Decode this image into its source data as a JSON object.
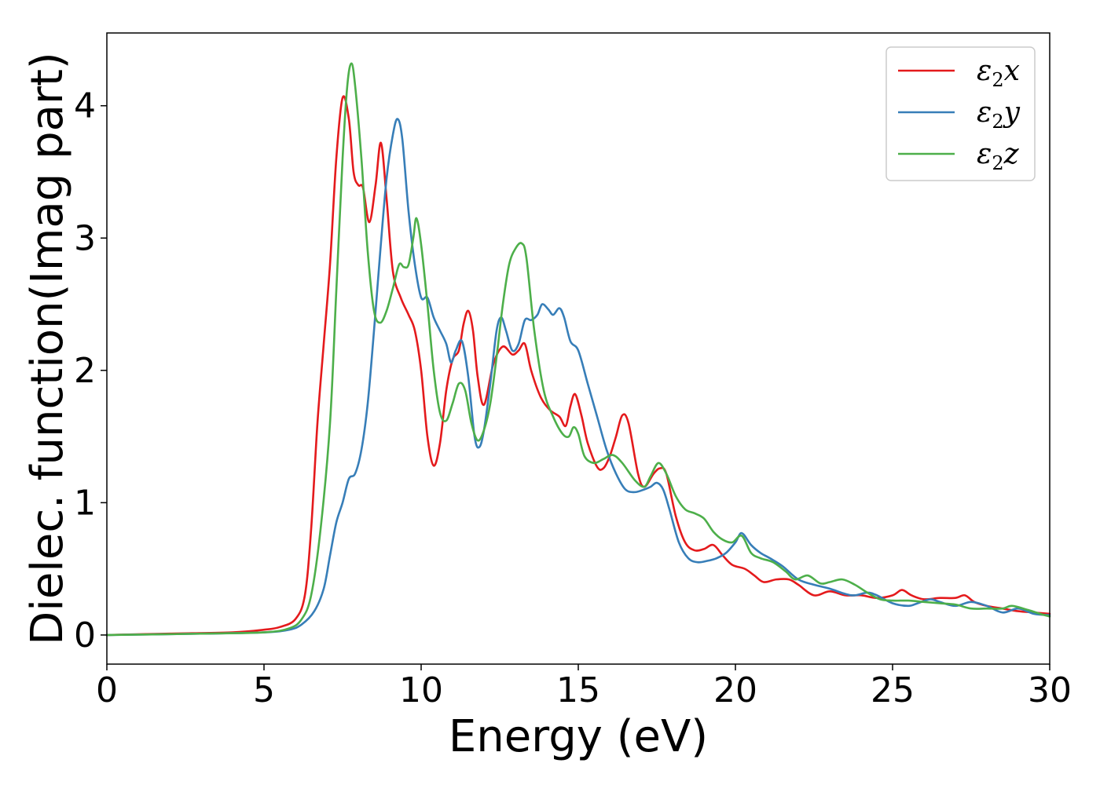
{
  "chart_data": {
    "type": "line",
    "title": "",
    "xlabel": "Energy (eV)",
    "ylabel": "Dielec. function(Imag part)",
    "xlim": [
      0,
      30
    ],
    "ylim": [
      -0.22,
      4.55
    ],
    "xticks": [
      0,
      5,
      10,
      15,
      20,
      25,
      30
    ],
    "xtick_labels": [
      "0",
      "5",
      "10",
      "15",
      "20",
      "25",
      "30"
    ],
    "yticks": [
      0,
      1,
      2,
      3,
      4
    ],
    "ytick_labels": [
      "0",
      "1",
      "2",
      "3",
      "4"
    ],
    "grid": false,
    "legend_position": "top-right",
    "series": [
      {
        "name": "ε2x",
        "base": "ε",
        "sub": "2",
        "suffix": "x",
        "color": "#e41a1c",
        "points": [
          [
            0,
            0
          ],
          [
            2,
            0.01
          ],
          [
            4,
            0.02
          ],
          [
            5,
            0.04
          ],
          [
            5.5,
            0.06
          ],
          [
            6,
            0.12
          ],
          [
            6.3,
            0.3
          ],
          [
            6.5,
            0.8
          ],
          [
            6.7,
            1.6
          ],
          [
            6.9,
            2.2
          ],
          [
            7.1,
            2.8
          ],
          [
            7.3,
            3.6
          ],
          [
            7.5,
            4.06
          ],
          [
            7.7,
            3.9
          ],
          [
            7.85,
            3.5
          ],
          [
            8.0,
            3.4
          ],
          [
            8.15,
            3.38
          ],
          [
            8.35,
            3.12
          ],
          [
            8.55,
            3.4
          ],
          [
            8.72,
            3.72
          ],
          [
            8.9,
            3.3
          ],
          [
            9.1,
            2.75
          ],
          [
            9.35,
            2.55
          ],
          [
            9.6,
            2.42
          ],
          [
            9.8,
            2.3
          ],
          [
            10.0,
            2.0
          ],
          [
            10.2,
            1.5
          ],
          [
            10.4,
            1.28
          ],
          [
            10.6,
            1.45
          ],
          [
            10.8,
            1.85
          ],
          [
            11.0,
            2.08
          ],
          [
            11.2,
            2.15
          ],
          [
            11.35,
            2.35
          ],
          [
            11.5,
            2.45
          ],
          [
            11.65,
            2.3
          ],
          [
            11.8,
            1.95
          ],
          [
            12.0,
            1.74
          ],
          [
            12.3,
            2.05
          ],
          [
            12.6,
            2.18
          ],
          [
            12.9,
            2.12
          ],
          [
            13.1,
            2.15
          ],
          [
            13.3,
            2.2
          ],
          [
            13.5,
            2.0
          ],
          [
            13.8,
            1.8
          ],
          [
            14.1,
            1.7
          ],
          [
            14.4,
            1.65
          ],
          [
            14.6,
            1.58
          ],
          [
            14.75,
            1.73
          ],
          [
            14.9,
            1.82
          ],
          [
            15.1,
            1.66
          ],
          [
            15.3,
            1.45
          ],
          [
            15.6,
            1.27
          ],
          [
            15.8,
            1.26
          ],
          [
            16.0,
            1.35
          ],
          [
            16.2,
            1.5
          ],
          [
            16.4,
            1.66
          ],
          [
            16.6,
            1.6
          ],
          [
            16.9,
            1.22
          ],
          [
            17.1,
            1.12
          ],
          [
            17.4,
            1.22
          ],
          [
            17.6,
            1.26
          ],
          [
            17.8,
            1.22
          ],
          [
            18.1,
            0.9
          ],
          [
            18.4,
            0.7
          ],
          [
            18.7,
            0.64
          ],
          [
            19.0,
            0.65
          ],
          [
            19.3,
            0.68
          ],
          [
            19.6,
            0.6
          ],
          [
            19.9,
            0.53
          ],
          [
            20.3,
            0.5
          ],
          [
            20.6,
            0.45
          ],
          [
            20.9,
            0.4
          ],
          [
            21.3,
            0.42
          ],
          [
            21.7,
            0.42
          ],
          [
            22.0,
            0.38
          ],
          [
            22.5,
            0.3
          ],
          [
            23.0,
            0.33
          ],
          [
            23.5,
            0.3
          ],
          [
            24.0,
            0.3
          ],
          [
            24.5,
            0.28
          ],
          [
            25.0,
            0.3
          ],
          [
            25.3,
            0.34
          ],
          [
            25.6,
            0.3
          ],
          [
            26.0,
            0.27
          ],
          [
            26.5,
            0.28
          ],
          [
            27.0,
            0.28
          ],
          [
            27.3,
            0.3
          ],
          [
            27.6,
            0.25
          ],
          [
            28.0,
            0.22
          ],
          [
            28.5,
            0.2
          ],
          [
            29.0,
            0.18
          ],
          [
            29.5,
            0.17
          ],
          [
            30,
            0.16
          ]
        ]
      },
      {
        "name": "ε2y",
        "base": "ε",
        "sub": "2",
        "suffix": "y",
        "color": "#377eb8",
        "points": [
          [
            0,
            0
          ],
          [
            3,
            0.01
          ],
          [
            5,
            0.02
          ],
          [
            5.8,
            0.04
          ],
          [
            6.2,
            0.08
          ],
          [
            6.6,
            0.18
          ],
          [
            6.9,
            0.35
          ],
          [
            7.1,
            0.6
          ],
          [
            7.3,
            0.85
          ],
          [
            7.5,
            1.0
          ],
          [
            7.7,
            1.18
          ],
          [
            7.9,
            1.22
          ],
          [
            8.1,
            1.4
          ],
          [
            8.3,
            1.75
          ],
          [
            8.5,
            2.3
          ],
          [
            8.7,
            2.9
          ],
          [
            8.9,
            3.45
          ],
          [
            9.1,
            3.78
          ],
          [
            9.25,
            3.9
          ],
          [
            9.4,
            3.75
          ],
          [
            9.6,
            3.2
          ],
          [
            9.8,
            2.8
          ],
          [
            10.0,
            2.55
          ],
          [
            10.2,
            2.55
          ],
          [
            10.4,
            2.4
          ],
          [
            10.6,
            2.3
          ],
          [
            10.8,
            2.2
          ],
          [
            10.95,
            2.06
          ],
          [
            11.1,
            2.15
          ],
          [
            11.3,
            2.22
          ],
          [
            11.5,
            1.95
          ],
          [
            11.7,
            1.5
          ],
          [
            11.85,
            1.42
          ],
          [
            12.0,
            1.55
          ],
          [
            12.2,
            1.9
          ],
          [
            12.4,
            2.3
          ],
          [
            12.55,
            2.4
          ],
          [
            12.7,
            2.3
          ],
          [
            12.9,
            2.15
          ],
          [
            13.1,
            2.2
          ],
          [
            13.3,
            2.38
          ],
          [
            13.5,
            2.38
          ],
          [
            13.7,
            2.42
          ],
          [
            13.85,
            2.5
          ],
          [
            14.05,
            2.46
          ],
          [
            14.2,
            2.42
          ],
          [
            14.4,
            2.47
          ],
          [
            14.55,
            2.4
          ],
          [
            14.75,
            2.22
          ],
          [
            15.0,
            2.15
          ],
          [
            15.3,
            1.9
          ],
          [
            15.6,
            1.65
          ],
          [
            15.9,
            1.4
          ],
          [
            16.2,
            1.22
          ],
          [
            16.5,
            1.1
          ],
          [
            16.8,
            1.08
          ],
          [
            17.1,
            1.1
          ],
          [
            17.3,
            1.12
          ],
          [
            17.5,
            1.15
          ],
          [
            17.7,
            1.1
          ],
          [
            17.9,
            0.95
          ],
          [
            18.2,
            0.7
          ],
          [
            18.5,
            0.58
          ],
          [
            18.8,
            0.55
          ],
          [
            19.1,
            0.56
          ],
          [
            19.4,
            0.58
          ],
          [
            19.7,
            0.62
          ],
          [
            20.0,
            0.7
          ],
          [
            20.2,
            0.77
          ],
          [
            20.5,
            0.68
          ],
          [
            20.8,
            0.62
          ],
          [
            21.1,
            0.58
          ],
          [
            21.5,
            0.52
          ],
          [
            22.0,
            0.42
          ],
          [
            22.5,
            0.38
          ],
          [
            23.0,
            0.35
          ],
          [
            23.5,
            0.31
          ],
          [
            23.8,
            0.3
          ],
          [
            24.2,
            0.32
          ],
          [
            24.5,
            0.3
          ],
          [
            25.0,
            0.24
          ],
          [
            25.5,
            0.22
          ],
          [
            25.8,
            0.24
          ],
          [
            26.2,
            0.27
          ],
          [
            26.5,
            0.25
          ],
          [
            27.0,
            0.22
          ],
          [
            27.5,
            0.25
          ],
          [
            28.0,
            0.22
          ],
          [
            28.5,
            0.17
          ],
          [
            29.0,
            0.2
          ],
          [
            29.5,
            0.16
          ],
          [
            30,
            0.15
          ]
        ]
      },
      {
        "name": "ε2z",
        "base": "ε",
        "sub": "2",
        "suffix": "z",
        "color": "#4daf4a",
        "points": [
          [
            0,
            0
          ],
          [
            3,
            0.01
          ],
          [
            5,
            0.02
          ],
          [
            5.8,
            0.05
          ],
          [
            6.2,
            0.12
          ],
          [
            6.5,
            0.3
          ],
          [
            6.8,
            0.8
          ],
          [
            7.1,
            1.6
          ],
          [
            7.3,
            2.6
          ],
          [
            7.5,
            3.6
          ],
          [
            7.65,
            4.15
          ],
          [
            7.78,
            4.32
          ],
          [
            7.9,
            4.15
          ],
          [
            8.1,
            3.6
          ],
          [
            8.3,
            2.9
          ],
          [
            8.5,
            2.45
          ],
          [
            8.7,
            2.36
          ],
          [
            8.9,
            2.45
          ],
          [
            9.1,
            2.62
          ],
          [
            9.3,
            2.8
          ],
          [
            9.45,
            2.78
          ],
          [
            9.6,
            2.8
          ],
          [
            9.75,
            3.0
          ],
          [
            9.85,
            3.15
          ],
          [
            10.0,
            2.95
          ],
          [
            10.2,
            2.5
          ],
          [
            10.4,
            2.0
          ],
          [
            10.6,
            1.68
          ],
          [
            10.8,
            1.62
          ],
          [
            11.0,
            1.75
          ],
          [
            11.2,
            1.9
          ],
          [
            11.4,
            1.85
          ],
          [
            11.6,
            1.6
          ],
          [
            11.8,
            1.47
          ],
          [
            12.0,
            1.55
          ],
          [
            12.2,
            1.75
          ],
          [
            12.4,
            2.1
          ],
          [
            12.6,
            2.5
          ],
          [
            12.8,
            2.8
          ],
          [
            13.0,
            2.92
          ],
          [
            13.2,
            2.96
          ],
          [
            13.35,
            2.85
          ],
          [
            13.6,
            2.3
          ],
          [
            13.9,
            1.85
          ],
          [
            14.2,
            1.65
          ],
          [
            14.5,
            1.52
          ],
          [
            14.7,
            1.5
          ],
          [
            14.85,
            1.57
          ],
          [
            15.0,
            1.52
          ],
          [
            15.2,
            1.35
          ],
          [
            15.5,
            1.3
          ],
          [
            15.8,
            1.33
          ],
          [
            16.1,
            1.36
          ],
          [
            16.4,
            1.3
          ],
          [
            16.8,
            1.17
          ],
          [
            17.1,
            1.12
          ],
          [
            17.3,
            1.2
          ],
          [
            17.55,
            1.3
          ],
          [
            17.8,
            1.22
          ],
          [
            18.1,
            1.05
          ],
          [
            18.4,
            0.95
          ],
          [
            18.7,
            0.92
          ],
          [
            19.0,
            0.88
          ],
          [
            19.3,
            0.78
          ],
          [
            19.6,
            0.72
          ],
          [
            19.9,
            0.7
          ],
          [
            20.2,
            0.75
          ],
          [
            20.5,
            0.62
          ],
          [
            20.8,
            0.58
          ],
          [
            21.2,
            0.55
          ],
          [
            21.6,
            0.48
          ],
          [
            21.9,
            0.42
          ],
          [
            22.3,
            0.45
          ],
          [
            22.7,
            0.39
          ],
          [
            23.0,
            0.4
          ],
          [
            23.4,
            0.42
          ],
          [
            23.8,
            0.38
          ],
          [
            24.2,
            0.32
          ],
          [
            24.6,
            0.27
          ],
          [
            25.0,
            0.26
          ],
          [
            25.5,
            0.26
          ],
          [
            26.0,
            0.25
          ],
          [
            26.5,
            0.24
          ],
          [
            27.0,
            0.23
          ],
          [
            27.5,
            0.2
          ],
          [
            28.0,
            0.2
          ],
          [
            28.5,
            0.2
          ],
          [
            28.8,
            0.22
          ],
          [
            29.3,
            0.19
          ],
          [
            29.7,
            0.16
          ],
          [
            30,
            0.14
          ]
        ]
      }
    ]
  }
}
